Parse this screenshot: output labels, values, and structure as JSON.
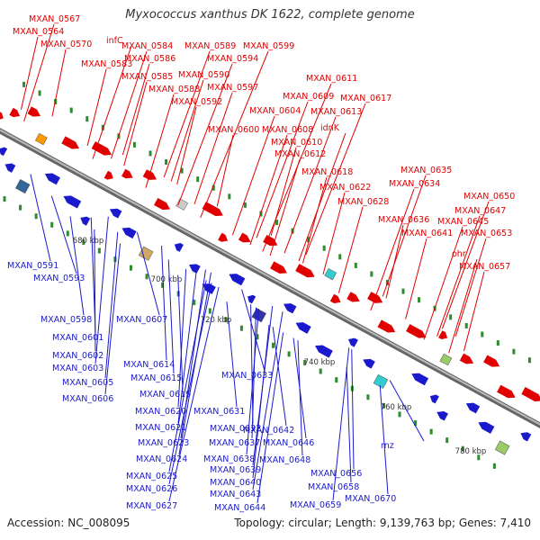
{
  "title": "Myxococcus xanthus DK 1622, complete genome",
  "footer": {
    "accession": "Accession: NC_008095",
    "stats": "Topology: circular; Length: 9,139,763 bp; Genes: 7,410"
  },
  "colors": {
    "forward": "#e00000",
    "reverse": "#1a1acc",
    "backbone": "#888888",
    "tick": "#2e8b2e"
  },
  "scale_labels": [
    "680 kbp",
    "700 kbp",
    "720 kbp",
    "740 kbp",
    "760 kbp",
    "780 kbp"
  ],
  "forward_labels": [
    "MXAN_0567",
    "MXAN_0564",
    "MXAN_0570",
    "infC",
    "MXAN_0584",
    "MXAN_0589",
    "MXAN_0599",
    "MXAN_0583",
    "MXAN_0586",
    "MXAN_0594",
    "MXAN_0585",
    "MXAN_0590",
    "MXAN_0588",
    "MXAN_0597",
    "MXAN_0592",
    "MXAN_0611",
    "MXAN_0609",
    "MXAN_0617",
    "MXAN_0604",
    "MXAN_0613",
    "MXAN_0600",
    "MXAN_0608",
    "idnK",
    "MXAN_0610",
    "MXAN_0612",
    "MXAN_0618",
    "MXAN_0635",
    "MXAN_0634",
    "MXAN_0622",
    "MXAN_0650",
    "MXAN_0628",
    "MXAN_0647",
    "MXAN_0636",
    "MXAN_0645",
    "MXAN_0641",
    "MXAN_0653",
    "ohr",
    "MXAN_0657"
  ],
  "reverse_labels": [
    "MXAN_0591",
    "MXAN_0593",
    "MXAN_0598",
    "MXAN_0607",
    "MXAN_0601",
    "MXAN_0602",
    "MXAN_0603",
    "MXAN_0605",
    "MXAN_0606",
    "MXAN_0614",
    "MXAN_0615",
    "MXAN_0619",
    "MXAN_0633",
    "MXAN_0620",
    "MXAN_0631",
    "MXAN_0621",
    "MXAN_0632",
    "MXAN_0642",
    "MXAN_0623",
    "MXAN_0637",
    "MXAN_0646",
    "MXAN_0624",
    "MXAN_0638",
    "MXAN_0648",
    "MXAN_0639",
    "MXAN_0625",
    "MXAN_0640",
    "MXAN_0656",
    "MXAN_0626",
    "MXAN_0658",
    "MXAN_0643",
    "MXAN_0627",
    "MXAN_0644",
    "MXAN_0659",
    "rnz",
    "MXAN_0670"
  ]
}
